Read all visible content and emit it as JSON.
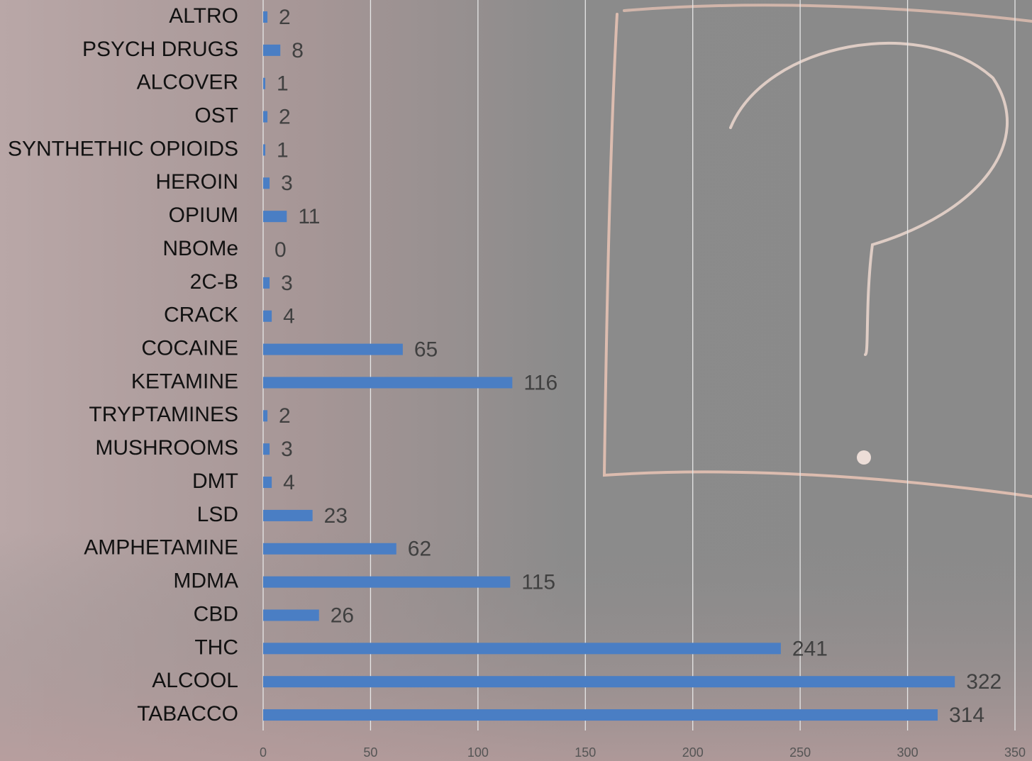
{
  "chart_data": {
    "type": "hbar",
    "categories": [
      "ALTRO",
      "PSYCH DRUGS",
      "ALCOVER",
      "OST",
      "SYNTHETHIC OPIOIDS",
      "HEROIN",
      "OPIUM",
      "NBOMe",
      "2C-B",
      "CRACK",
      "COCAINE",
      "KETAMINE",
      "TRYPTAMINES",
      "MUSHROOMS",
      "DMT",
      "LSD",
      "AMPHETAMINE",
      "MDMA",
      "CBD",
      "THC",
      "ALCOOL",
      "TABACCO"
    ],
    "values": [
      2,
      8,
      1,
      2,
      1,
      3,
      11,
      0,
      3,
      4,
      65,
      116,
      2,
      3,
      4,
      23,
      62,
      115,
      26,
      241,
      322,
      314
    ],
    "color": "#4a7ec4",
    "xlim": [
      0,
      350
    ],
    "xticks": [
      0,
      50,
      100,
      150,
      200,
      250,
      300,
      350
    ],
    "grid": true
  }
}
